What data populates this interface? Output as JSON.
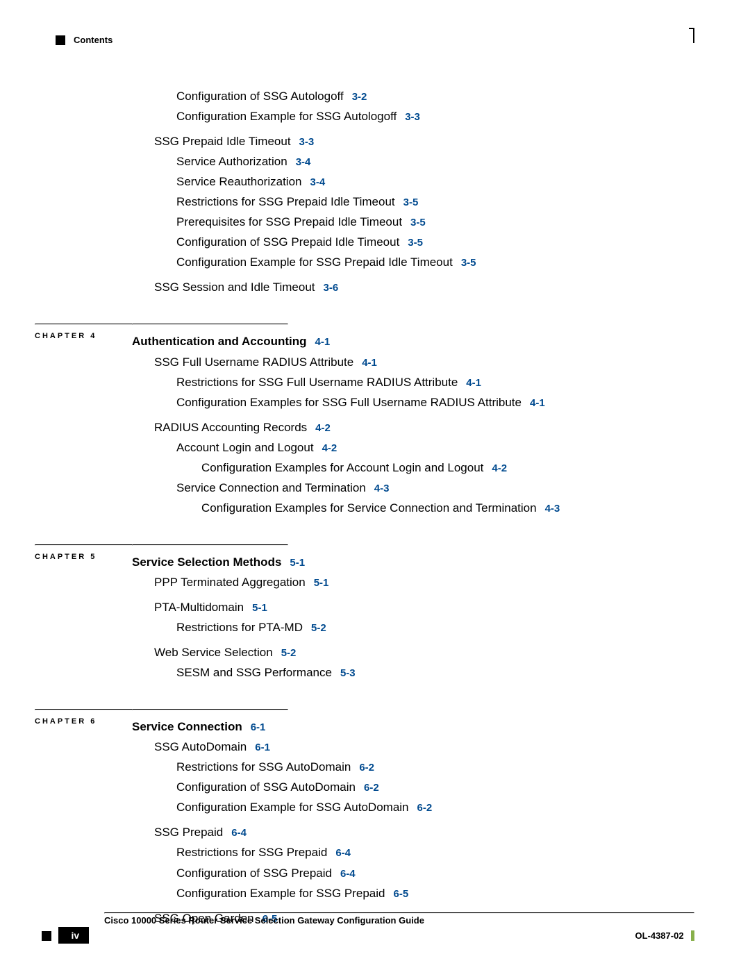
{
  "header": "Contents",
  "pre_items": [
    {
      "level": 2,
      "text": "Configuration of SSG Autologoff",
      "ref": "3-2"
    },
    {
      "level": 2,
      "text": "Configuration Example for SSG Autologoff",
      "ref": "3-3"
    },
    {
      "level": 1,
      "text": "SSG Prepaid Idle Timeout",
      "ref": "3-3",
      "gap_before": true
    },
    {
      "level": 2,
      "text": "Service Authorization",
      "ref": "3-4"
    },
    {
      "level": 2,
      "text": "Service Reauthorization",
      "ref": "3-4"
    },
    {
      "level": 2,
      "text": "Restrictions for SSG Prepaid Idle Timeout",
      "ref": "3-5"
    },
    {
      "level": 2,
      "text": "Prerequisites for SSG Prepaid Idle Timeout",
      "ref": "3-5"
    },
    {
      "level": 2,
      "text": "Configuration of SSG Prepaid Idle Timeout",
      "ref": "3-5"
    },
    {
      "level": 2,
      "text": "Configuration Example for SSG Prepaid Idle Timeout",
      "ref": "3-5"
    },
    {
      "level": 1,
      "text": "SSG Session and Idle Timeout",
      "ref": "3-6",
      "gap_before": true
    }
  ],
  "chapters": [
    {
      "label": "CHAPTER 4",
      "title": "Authentication and Accounting",
      "title_ref": "4-1",
      "items": [
        {
          "level": 1,
          "text": "SSG Full Username RADIUS Attribute",
          "ref": "4-1"
        },
        {
          "level": 2,
          "text": "Restrictions for SSG Full Username RADIUS Attribute",
          "ref": "4-1"
        },
        {
          "level": 2,
          "text": "Configuration Examples for SSG Full Username RADIUS Attribute",
          "ref": "4-1"
        },
        {
          "level": 1,
          "text": "RADIUS Accounting Records",
          "ref": "4-2",
          "gap_before": true
        },
        {
          "level": 2,
          "text": "Account Login and Logout",
          "ref": "4-2"
        },
        {
          "level": 3,
          "text": "Configuration Examples for Account Login and Logout",
          "ref": "4-2"
        },
        {
          "level": 2,
          "text": "Service Connection and Termination",
          "ref": "4-3"
        },
        {
          "level": 3,
          "text": "Configuration Examples for Service Connection and Termination",
          "ref": "4-3"
        }
      ]
    },
    {
      "label": "CHAPTER 5",
      "title": "Service Selection Methods",
      "title_ref": "5-1",
      "items": [
        {
          "level": 1,
          "text": "PPP Terminated Aggregation",
          "ref": "5-1"
        },
        {
          "level": 1,
          "text": "PTA-Multidomain",
          "ref": "5-1",
          "gap_before": true
        },
        {
          "level": 2,
          "text": "Restrictions for PTA-MD",
          "ref": "5-2"
        },
        {
          "level": 1,
          "text": "Web Service Selection",
          "ref": "5-2",
          "gap_before": true
        },
        {
          "level": 2,
          "text": "SESM and SSG Performance",
          "ref": "5-3"
        }
      ]
    },
    {
      "label": "CHAPTER 6",
      "title": "Service Connection",
      "title_ref": "6-1",
      "items": [
        {
          "level": 1,
          "text": "SSG AutoDomain",
          "ref": "6-1"
        },
        {
          "level": 2,
          "text": "Restrictions for SSG AutoDomain",
          "ref": "6-2"
        },
        {
          "level": 2,
          "text": "Configuration of SSG AutoDomain",
          "ref": "6-2"
        },
        {
          "level": 2,
          "text": "Configuration Example for SSG AutoDomain",
          "ref": "6-2"
        },
        {
          "level": 1,
          "text": "SSG Prepaid",
          "ref": "6-4",
          "gap_before": true
        },
        {
          "level": 2,
          "text": "Restrictions for SSG Prepaid",
          "ref": "6-4"
        },
        {
          "level": 2,
          "text": "Configuration of SSG Prepaid",
          "ref": "6-4"
        },
        {
          "level": 2,
          "text": "Configuration Example for SSG Prepaid",
          "ref": "6-5"
        },
        {
          "level": 1,
          "text": "SSG Open Garden",
          "ref": "6-5",
          "gap_before": true
        }
      ]
    }
  ],
  "footer": {
    "title": "Cisco 10000 Series Router Service Selection Gateway Configuration Guide",
    "page": "iv",
    "docnum": "OL-4387-02"
  }
}
